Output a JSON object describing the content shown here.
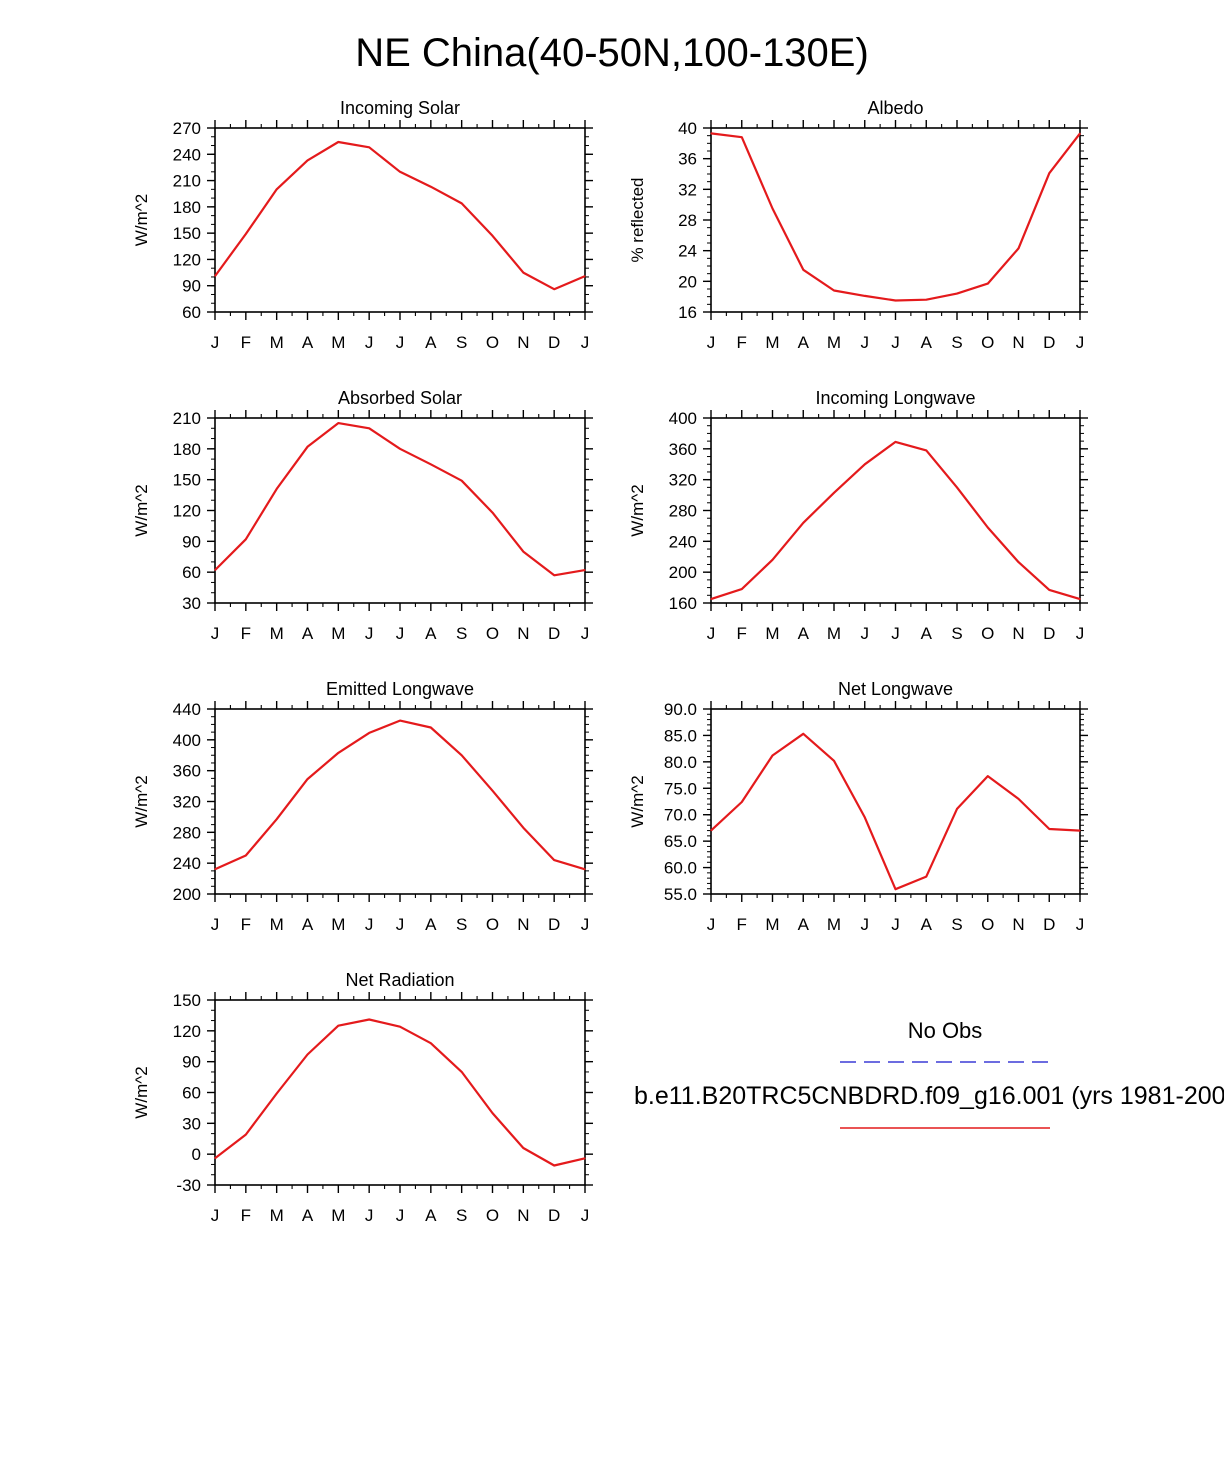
{
  "title": "NE China(40-50N,100-130E)",
  "colors": {
    "model_line": "#e41a1c",
    "obs_line": "#3b3bd6",
    "axis": "#000000"
  },
  "legend": {
    "obs_label": "No Obs",
    "model_label": "b.e11.B20TRC5CNBDRD.f09_g16.001 (yrs 1981-200"
  },
  "chart_data": [
    {
      "type": "line",
      "title": "Incoming Solar",
      "ylabel": "W/m^2",
      "categories": [
        "J",
        "F",
        "M",
        "A",
        "M",
        "J",
        "J",
        "A",
        "S",
        "O",
        "N",
        "D",
        "J"
      ],
      "ylim": [
        60,
        270
      ],
      "yticks": [
        60,
        90,
        120,
        150,
        180,
        210,
        240,
        270
      ],
      "ytick_labels": [
        "60",
        "90",
        "120",
        "150",
        "180",
        "210",
        "240",
        "270"
      ],
      "minor_step": 10,
      "series": [
        {
          "name": "b.e11.B20TRC5CNBDRD.f09_g16.001",
          "values": [
            101,
            149,
            200,
            233,
            254,
            248,
            220,
            203,
            184,
            147,
            105,
            86,
            101
          ]
        }
      ]
    },
    {
      "type": "line",
      "title": "Albedo",
      "ylabel": "% reflected",
      "categories": [
        "J",
        "F",
        "M",
        "A",
        "M",
        "J",
        "J",
        "A",
        "S",
        "O",
        "N",
        "D",
        "J"
      ],
      "ylim": [
        16,
        40
      ],
      "yticks": [
        16,
        20,
        24,
        28,
        32,
        36,
        40
      ],
      "ytick_labels": [
        "16",
        "20",
        "24",
        "28",
        "32",
        "36",
        "40"
      ],
      "minor_step": 1,
      "series": [
        {
          "name": "b.e11.B20TRC5CNBDRD.f09_g16.001",
          "values": [
            39.3,
            38.8,
            29.5,
            21.5,
            18.8,
            18.1,
            17.5,
            17.6,
            18.4,
            19.7,
            24.3,
            34.1,
            39.3
          ]
        }
      ]
    },
    {
      "type": "line",
      "title": "Absorbed Solar",
      "ylabel": "W/m^2",
      "categories": [
        "J",
        "F",
        "M",
        "A",
        "M",
        "J",
        "J",
        "A",
        "S",
        "O",
        "N",
        "D",
        "J"
      ],
      "ylim": [
        30,
        210
      ],
      "yticks": [
        30,
        60,
        90,
        120,
        150,
        180,
        210
      ],
      "ytick_labels": [
        "30",
        "60",
        "90",
        "120",
        "150",
        "180",
        "210"
      ],
      "minor_step": 10,
      "series": [
        {
          "name": "b.e11.B20TRC5CNBDRD.f09_g16.001",
          "values": [
            62,
            92,
            141,
            182,
            205,
            200,
            180,
            165,
            149,
            118,
            80,
            57,
            62
          ]
        }
      ]
    },
    {
      "type": "line",
      "title": "Incoming Longwave",
      "ylabel": "W/m^2",
      "categories": [
        "J",
        "F",
        "M",
        "A",
        "M",
        "J",
        "J",
        "A",
        "S",
        "O",
        "N",
        "D",
        "J"
      ],
      "ylim": [
        160,
        400
      ],
      "yticks": [
        160,
        200,
        240,
        280,
        320,
        360,
        400
      ],
      "ytick_labels": [
        "160",
        "200",
        "240",
        "280",
        "320",
        "360",
        "400"
      ],
      "minor_step": 10,
      "series": [
        {
          "name": "b.e11.B20TRC5CNBDRD.f09_g16.001",
          "values": [
            165,
            178,
            216,
            264,
            303,
            340,
            369,
            358,
            310,
            258,
            213,
            177,
            165
          ]
        }
      ]
    },
    {
      "type": "line",
      "title": "Emitted Longwave",
      "ylabel": "W/m^2",
      "categories": [
        "J",
        "F",
        "M",
        "A",
        "M",
        "J",
        "J",
        "A",
        "S",
        "O",
        "N",
        "D",
        "J"
      ],
      "ylim": [
        200,
        440
      ],
      "yticks": [
        200,
        240,
        280,
        320,
        360,
        400,
        440
      ],
      "ytick_labels": [
        "200",
        "240",
        "280",
        "320",
        "360",
        "400",
        "440"
      ],
      "minor_step": 10,
      "series": [
        {
          "name": "b.e11.B20TRC5CNBDRD.f09_g16.001",
          "values": [
            232,
            250,
            297,
            349,
            383,
            409,
            425,
            416,
            380,
            334,
            286,
            244,
            232
          ]
        }
      ]
    },
    {
      "type": "line",
      "title": "Net Longwave",
      "ylabel": "W/m^2",
      "categories": [
        "J",
        "F",
        "M",
        "A",
        "M",
        "J",
        "J",
        "A",
        "S",
        "O",
        "N",
        "D",
        "J"
      ],
      "ylim": [
        55,
        90
      ],
      "yticks": [
        55,
        60,
        65,
        70,
        75,
        80,
        85,
        90
      ],
      "ytick_labels": [
        "55.0",
        "60.0",
        "65.0",
        "70.0",
        "75.0",
        "80.0",
        "85.0",
        "90.0"
      ],
      "minor_step": 1,
      "series": [
        {
          "name": "b.e11.B20TRC5CNBDRD.f09_g16.001",
          "values": [
            67.0,
            72.4,
            81.2,
            85.3,
            80.2,
            69.5,
            55.9,
            58.3,
            71.1,
            77.3,
            73.0,
            67.3,
            67.0
          ]
        }
      ]
    },
    {
      "type": "line",
      "title": "Net Radiation",
      "ylabel": "W/m^2",
      "categories": [
        "J",
        "F",
        "M",
        "A",
        "M",
        "J",
        "J",
        "A",
        "S",
        "O",
        "N",
        "D",
        "J"
      ],
      "ylim": [
        -30,
        150
      ],
      "yticks": [
        -30,
        0,
        30,
        60,
        90,
        120,
        150
      ],
      "ytick_labels": [
        "-30",
        "0",
        "30",
        "60",
        "90",
        "120",
        "150"
      ],
      "minor_step": 10,
      "series": [
        {
          "name": "b.e11.B20TRC5CNBDRD.f09_g16.001",
          "values": [
            -4,
            19,
            59,
            97,
            125,
            131,
            124,
            108,
            80,
            40,
            6,
            -11,
            -4
          ]
        }
      ]
    }
  ]
}
